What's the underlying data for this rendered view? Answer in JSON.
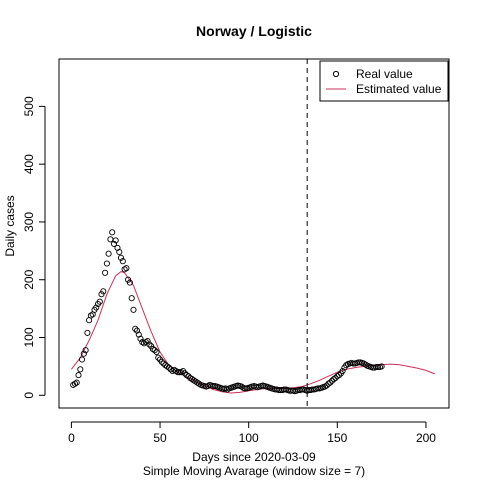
{
  "chart_data": {
    "type": "scatter",
    "title": "Norway / Logistic",
    "xlabel": "Days since 2020-03-09",
    "subtitle": "Simple Moving Avarage (window size = 7)",
    "ylabel": "Daily cases",
    "xlim": [
      -7,
      213
    ],
    "ylim": [
      -22,
      582
    ],
    "xticks": [
      0,
      50,
      100,
      150,
      200
    ],
    "yticks": [
      0,
      100,
      200,
      300,
      400,
      500
    ],
    "vline_x": 133,
    "grid": false,
    "legend_position": "top-right",
    "legend": [
      {
        "label": "Real value",
        "marker": "circle",
        "color": "#000000"
      },
      {
        "label": "Estimated value",
        "marker": "line",
        "color": "#d0305a"
      }
    ],
    "series": [
      {
        "name": "Real value",
        "color": "#000000",
        "points": [
          [
            1,
            18
          ],
          [
            2,
            20
          ],
          [
            3,
            22
          ],
          [
            4,
            35
          ],
          [
            5,
            45
          ],
          [
            6,
            62
          ],
          [
            7,
            72
          ],
          [
            8,
            78
          ],
          [
            9,
            108
          ],
          [
            10,
            130
          ],
          [
            11,
            138
          ],
          [
            12,
            140
          ],
          [
            13,
            148
          ],
          [
            14,
            152
          ],
          [
            15,
            158
          ],
          [
            16,
            162
          ],
          [
            17,
            175
          ],
          [
            18,
            180
          ],
          [
            19,
            212
          ],
          [
            20,
            228
          ],
          [
            21,
            245
          ],
          [
            22,
            270
          ],
          [
            23,
            282
          ],
          [
            24,
            262
          ],
          [
            25,
            268
          ],
          [
            26,
            255
          ],
          [
            27,
            248
          ],
          [
            28,
            238
          ],
          [
            29,
            232
          ],
          [
            30,
            218
          ],
          [
            31,
            220
          ],
          [
            32,
            200
          ],
          [
            33,
            195
          ],
          [
            34,
            168
          ],
          [
            35,
            148
          ],
          [
            36,
            115
          ],
          [
            37,
            112
          ],
          [
            38,
            105
          ],
          [
            39,
            98
          ],
          [
            40,
            92
          ],
          [
            41,
            90
          ],
          [
            42,
            92
          ],
          [
            43,
            94
          ],
          [
            44,
            88
          ],
          [
            45,
            85
          ],
          [
            46,
            80
          ],
          [
            47,
            78
          ],
          [
            48,
            75
          ],
          [
            49,
            65
          ],
          [
            50,
            62
          ],
          [
            51,
            58
          ],
          [
            52,
            55
          ],
          [
            53,
            52
          ],
          [
            54,
            50
          ],
          [
            55,
            48
          ],
          [
            56,
            45
          ],
          [
            57,
            42
          ],
          [
            58,
            44
          ],
          [
            59,
            42
          ],
          [
            60,
            40
          ],
          [
            61,
            40
          ],
          [
            62,
            40
          ],
          [
            63,
            42
          ],
          [
            64,
            38
          ],
          [
            65,
            35
          ],
          [
            66,
            33
          ],
          [
            67,
            30
          ],
          [
            68,
            28
          ],
          [
            69,
            26
          ],
          [
            70,
            24
          ],
          [
            71,
            22
          ],
          [
            72,
            20
          ],
          [
            73,
            18
          ],
          [
            74,
            17
          ],
          [
            75,
            16
          ],
          [
            76,
            15
          ],
          [
            77,
            16
          ],
          [
            78,
            18
          ],
          [
            79,
            17
          ],
          [
            80,
            16
          ],
          [
            81,
            16
          ],
          [
            82,
            15
          ],
          [
            83,
            14
          ],
          [
            84,
            13
          ],
          [
            85,
            12
          ],
          [
            86,
            11
          ],
          [
            87,
            12
          ],
          [
            88,
            10
          ],
          [
            89,
            12
          ],
          [
            90,
            13
          ],
          [
            91,
            14
          ],
          [
            92,
            15
          ],
          [
            93,
            16
          ],
          [
            94,
            17
          ],
          [
            95,
            16
          ],
          [
            96,
            15
          ],
          [
            97,
            13
          ],
          [
            98,
            12
          ],
          [
            99,
            12
          ],
          [
            100,
            13
          ],
          [
            101,
            14
          ],
          [
            102,
            15
          ],
          [
            103,
            16
          ],
          [
            104,
            15
          ],
          [
            105,
            14
          ],
          [
            106,
            15
          ],
          [
            107,
            16
          ],
          [
            108,
            17
          ],
          [
            109,
            16
          ],
          [
            110,
            15
          ],
          [
            111,
            14
          ],
          [
            112,
            13
          ],
          [
            113,
            12
          ],
          [
            114,
            11
          ],
          [
            115,
            10
          ],
          [
            116,
            10
          ],
          [
            117,
            9
          ],
          [
            118,
            9
          ],
          [
            119,
            9
          ],
          [
            120,
            10
          ],
          [
            121,
            10
          ],
          [
            122,
            9
          ],
          [
            123,
            8
          ],
          [
            124,
            8
          ],
          [
            125,
            8
          ],
          [
            126,
            7
          ],
          [
            127,
            8
          ],
          [
            128,
            9
          ],
          [
            129,
            9
          ],
          [
            130,
            10
          ],
          [
            131,
            10
          ],
          [
            132,
            9
          ],
          [
            133,
            8
          ],
          [
            134,
            9
          ],
          [
            135,
            9
          ],
          [
            136,
            10
          ],
          [
            137,
            10
          ],
          [
            138,
            11
          ],
          [
            139,
            12
          ],
          [
            140,
            12
          ],
          [
            141,
            13
          ],
          [
            142,
            14
          ],
          [
            143,
            15
          ],
          [
            144,
            17
          ],
          [
            145,
            20
          ],
          [
            146,
            22
          ],
          [
            147,
            25
          ],
          [
            148,
            28
          ],
          [
            149,
            30
          ],
          [
            150,
            33
          ],
          [
            151,
            35
          ],
          [
            152,
            38
          ],
          [
            153,
            42
          ],
          [
            154,
            48
          ],
          [
            155,
            52
          ],
          [
            156,
            54
          ],
          [
            157,
            55
          ],
          [
            158,
            56
          ],
          [
            159,
            55
          ],
          [
            160,
            55
          ],
          [
            161,
            56
          ],
          [
            162,
            57
          ],
          [
            163,
            57
          ],
          [
            164,
            56
          ],
          [
            165,
            55
          ],
          [
            166,
            53
          ],
          [
            167,
            51
          ],
          [
            168,
            50
          ],
          [
            169,
            49
          ],
          [
            170,
            48
          ],
          [
            171,
            48
          ],
          [
            172,
            49
          ],
          [
            173,
            49
          ],
          [
            174,
            49
          ],
          [
            175,
            50
          ]
        ]
      },
      {
        "name": "Estimated value",
        "color": "#d0305a",
        "points": [
          [
            0,
            45
          ],
          [
            5,
            65
          ],
          [
            10,
            95
          ],
          [
            15,
            130
          ],
          [
            20,
            175
          ],
          [
            25,
            207
          ],
          [
            28,
            214
          ],
          [
            30,
            212
          ],
          [
            35,
            190
          ],
          [
            40,
            150
          ],
          [
            45,
            110
          ],
          [
            50,
            75
          ],
          [
            55,
            52
          ],
          [
            60,
            40
          ],
          [
            65,
            32
          ],
          [
            70,
            24
          ],
          [
            75,
            17
          ],
          [
            80,
            10
          ],
          [
            85,
            6
          ],
          [
            90,
            4
          ],
          [
            95,
            5
          ],
          [
            100,
            8
          ],
          [
            105,
            10
          ],
          [
            110,
            12
          ],
          [
            115,
            12
          ],
          [
            120,
            12
          ],
          [
            125,
            13
          ],
          [
            130,
            15
          ],
          [
            135,
            20
          ],
          [
            140,
            26
          ],
          [
            145,
            33
          ],
          [
            150,
            40
          ],
          [
            155,
            45
          ],
          [
            160,
            48
          ],
          [
            165,
            50
          ],
          [
            170,
            52
          ],
          [
            175,
            53
          ],
          [
            180,
            54
          ],
          [
            185,
            53
          ],
          [
            190,
            50
          ],
          [
            195,
            47
          ],
          [
            200,
            43
          ],
          [
            205,
            37
          ]
        ]
      }
    ]
  }
}
